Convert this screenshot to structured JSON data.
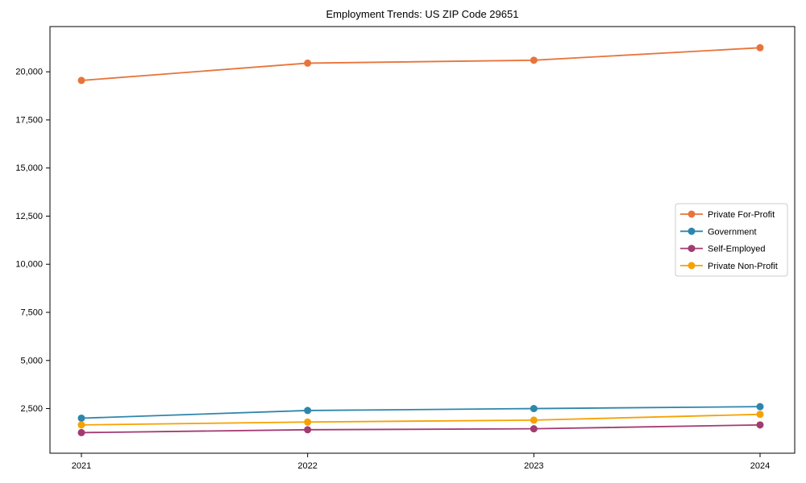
{
  "chart_data": {
    "type": "line",
    "title": "Employment Trends: US ZIP Code 29651",
    "xlabel": "",
    "ylabel": "",
    "categories": [
      "2021",
      "2022",
      "2023",
      "2024"
    ],
    "series": [
      {
        "name": "Private For-Profit",
        "color": "#e8743b",
        "values": [
          19550,
          20450,
          20600,
          21250
        ]
      },
      {
        "name": "Government",
        "color": "#2e86ab",
        "values": [
          2000,
          2400,
          2500,
          2600
        ]
      },
      {
        "name": "Self-Employed",
        "color": "#a23b72",
        "values": [
          1250,
          1400,
          1450,
          1650
        ]
      },
      {
        "name": "Private Non-Profit",
        "color": "#f5a201",
        "values": [
          1650,
          1800,
          1900,
          2200
        ]
      }
    ],
    "yticks": [
      2500,
      5000,
      7500,
      10000,
      12500,
      15000,
      17500,
      20000
    ],
    "ylim": [
      180,
      22350
    ],
    "grid": false,
    "legend_position": "center-right",
    "marker": "circle",
    "line_style": "solid",
    "axis_color": "#000000",
    "background_color": "#ffffff"
  }
}
